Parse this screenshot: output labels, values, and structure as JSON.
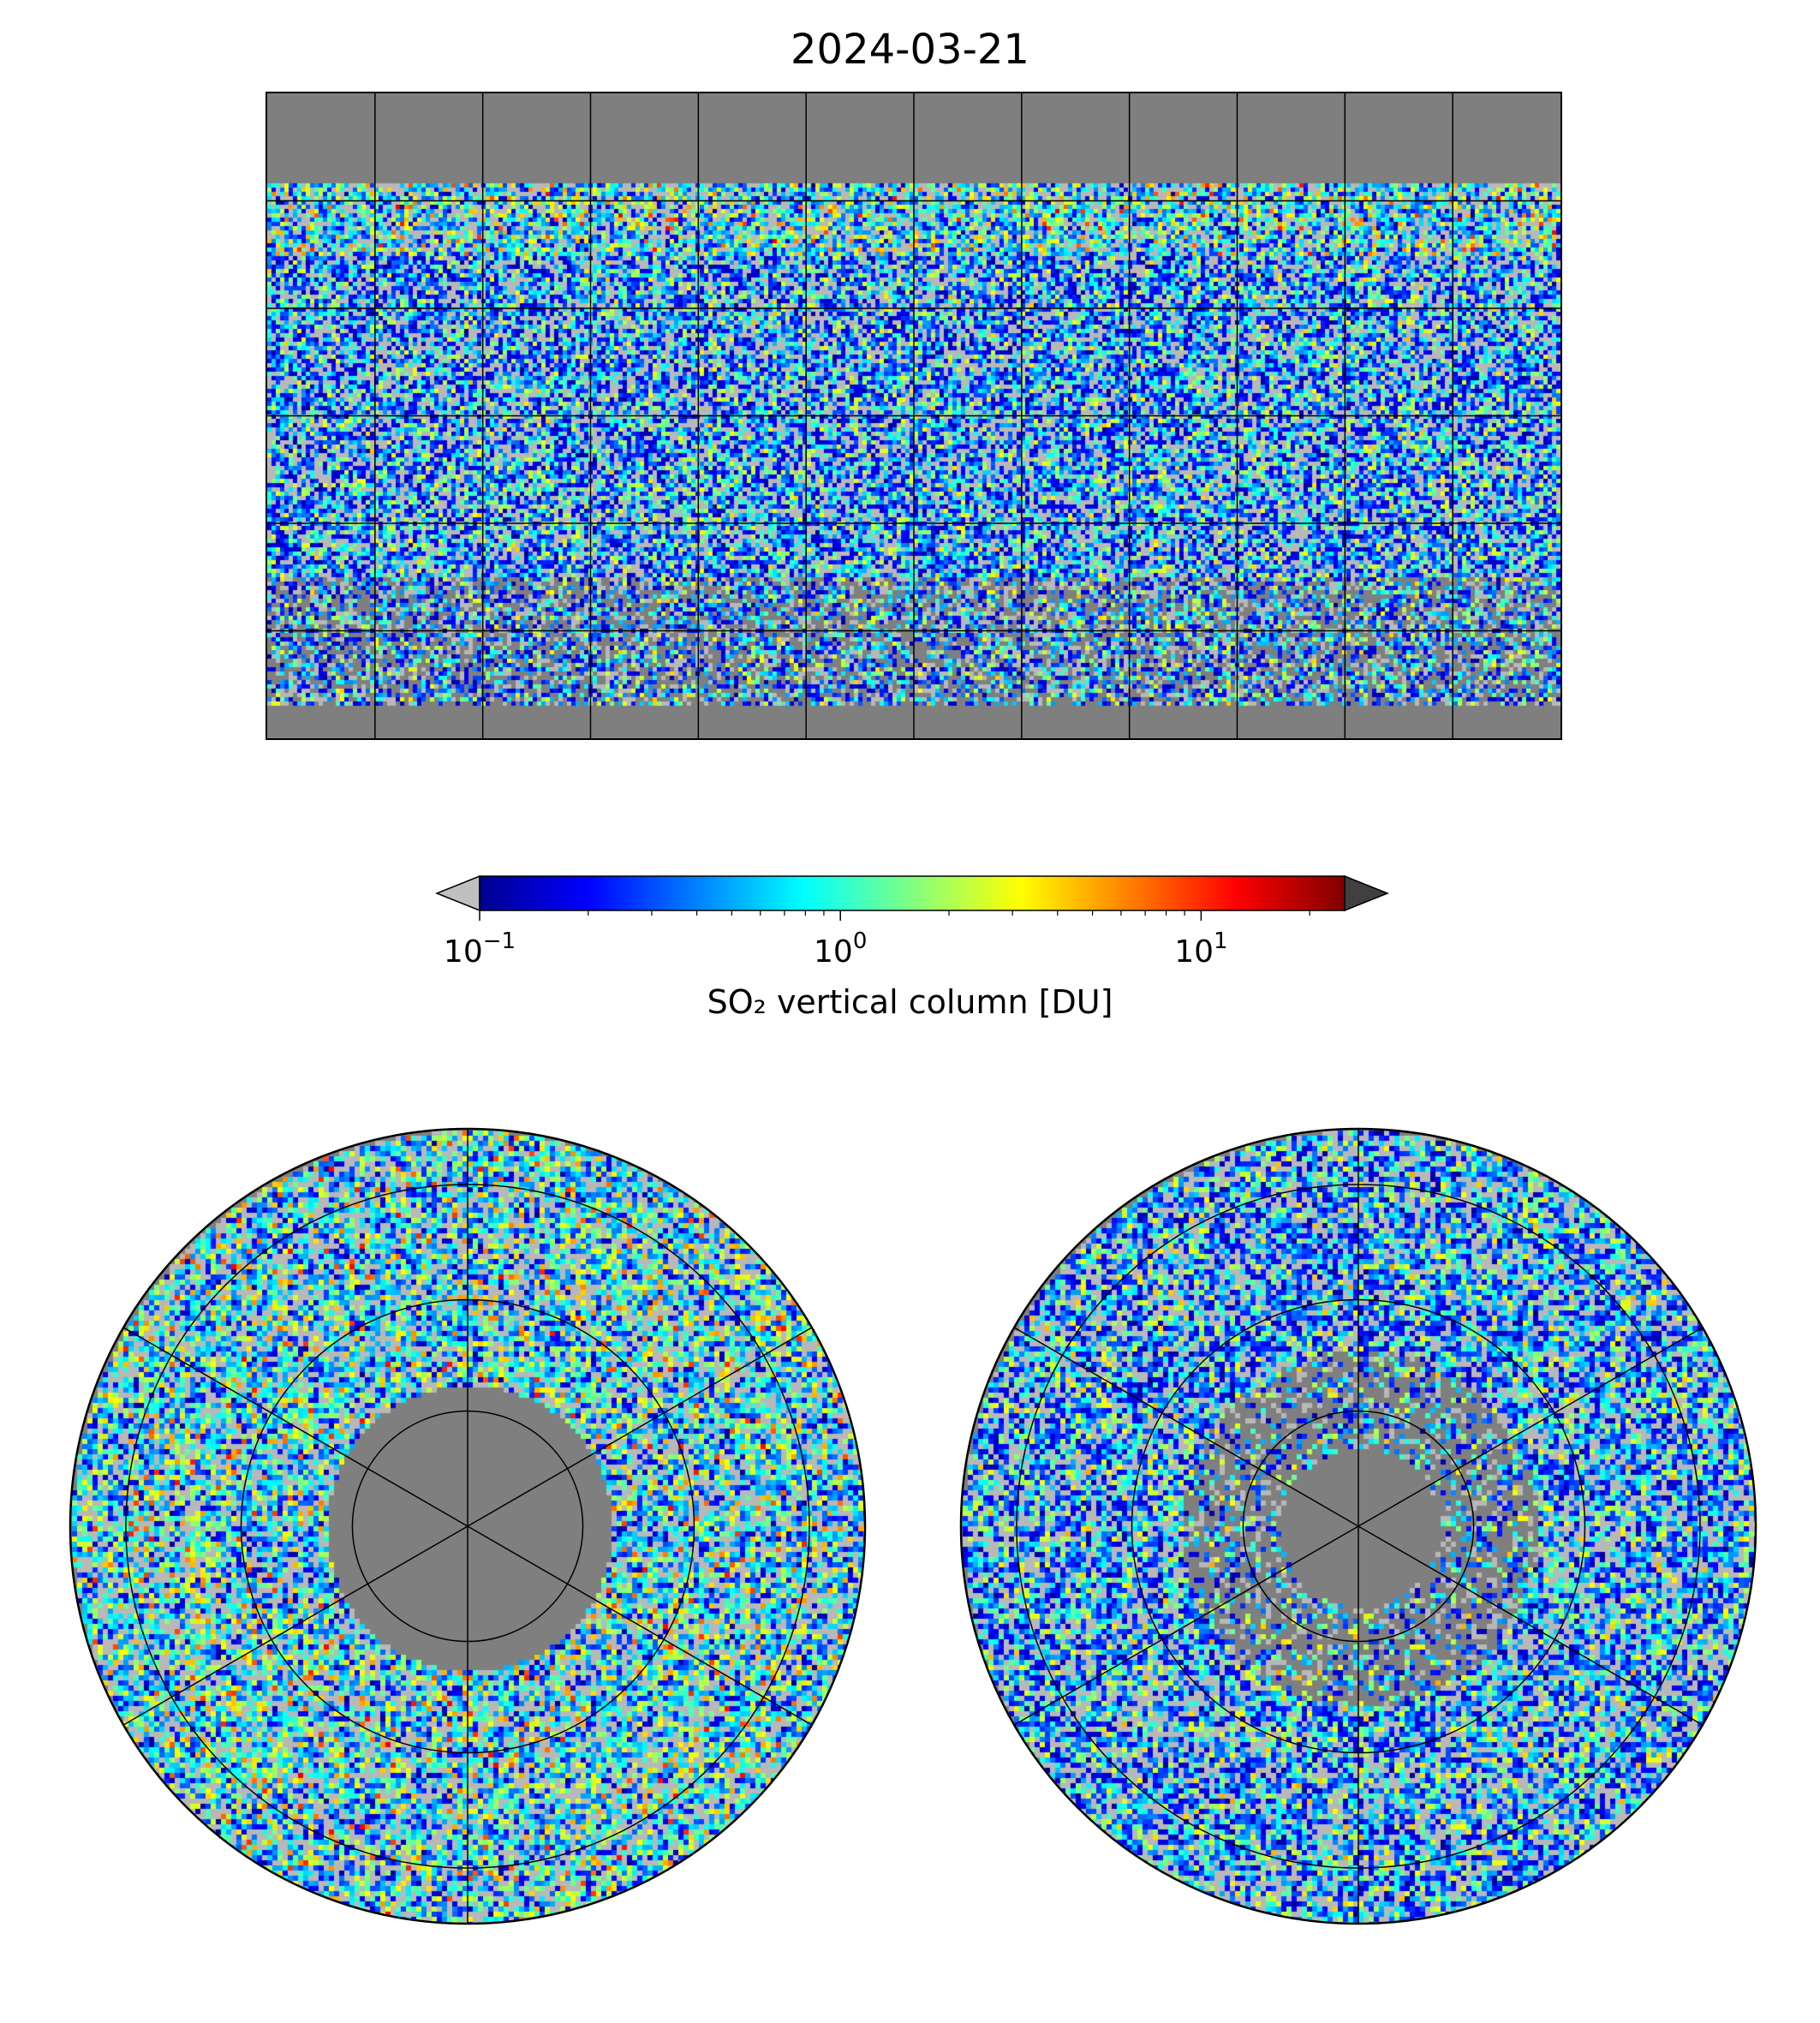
{
  "title": "2024-03-21",
  "colorbar": {
    "label": "SO₂ vertical column [DU]",
    "scale": "log",
    "range": [
      0.1,
      25
    ],
    "ticks": [
      {
        "base": "10",
        "exp": "−1",
        "value": 0.1
      },
      {
        "base": "10",
        "exp": "0",
        "value": 1
      },
      {
        "base": "10",
        "exp": "1",
        "value": 10
      }
    ],
    "under_color": "#c0c0c0",
    "over_color": "#404040",
    "colormap": [
      "#00008f",
      "#0000ff",
      "#0080ff",
      "#00ffff",
      "#80ff80",
      "#ffff00",
      "#ff8000",
      "#ff0000",
      "#800000"
    ]
  },
  "colors": {
    "no_data": "#7f7f7f",
    "below_range": "#b8b8b8",
    "coastline": "#000000",
    "grid": "#000000"
  },
  "maps": {
    "world": {
      "projection": "plate-carree",
      "meridian_step_deg": 30,
      "parallel_step_deg": 30
    },
    "north_polar": {
      "projection": "north-polar-stereographic"
    },
    "south_polar": {
      "projection": "south-polar-stereographic"
    }
  }
}
